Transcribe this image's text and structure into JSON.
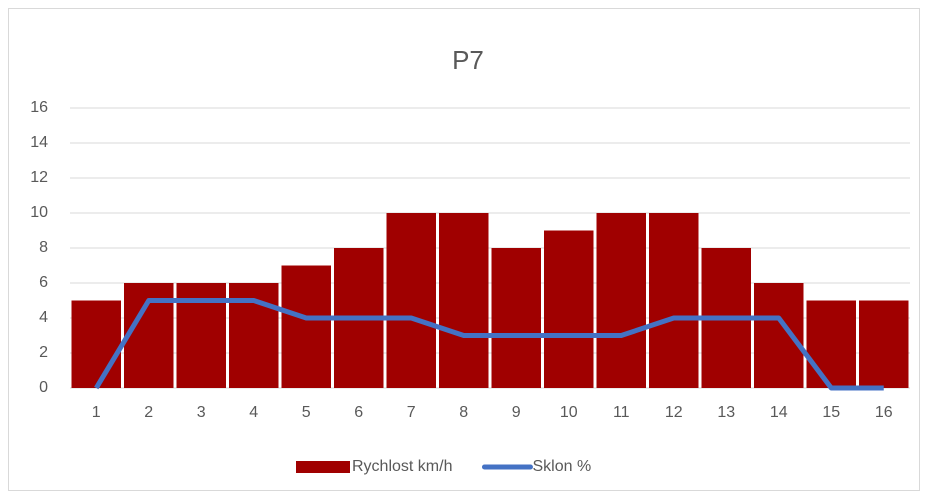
{
  "chart_data": {
    "type": "bar_line",
    "title": "P7",
    "categories": [
      "1",
      "2",
      "3",
      "4",
      "5",
      "6",
      "7",
      "8",
      "9",
      "10",
      "11",
      "12",
      "13",
      "14",
      "15",
      "16"
    ],
    "series": [
      {
        "name": "Rychlost km/h",
        "type": "bar",
        "color": "#a00000",
        "values": [
          5,
          6,
          6,
          6,
          7,
          8,
          10,
          10,
          8,
          9,
          10,
          10,
          8,
          6,
          5,
          5
        ]
      },
      {
        "name": "Sklon %",
        "type": "line",
        "color": "#4472c4",
        "values": [
          0,
          5,
          5,
          5,
          4,
          4,
          4,
          3,
          3,
          3,
          3,
          4,
          4,
          4,
          0,
          0
        ]
      }
    ],
    "ylim": [
      0,
      16
    ],
    "yticks": [
      0,
      2,
      4,
      6,
      8,
      10,
      12,
      14,
      16
    ],
    "grid": true,
    "legend": "bottom"
  }
}
